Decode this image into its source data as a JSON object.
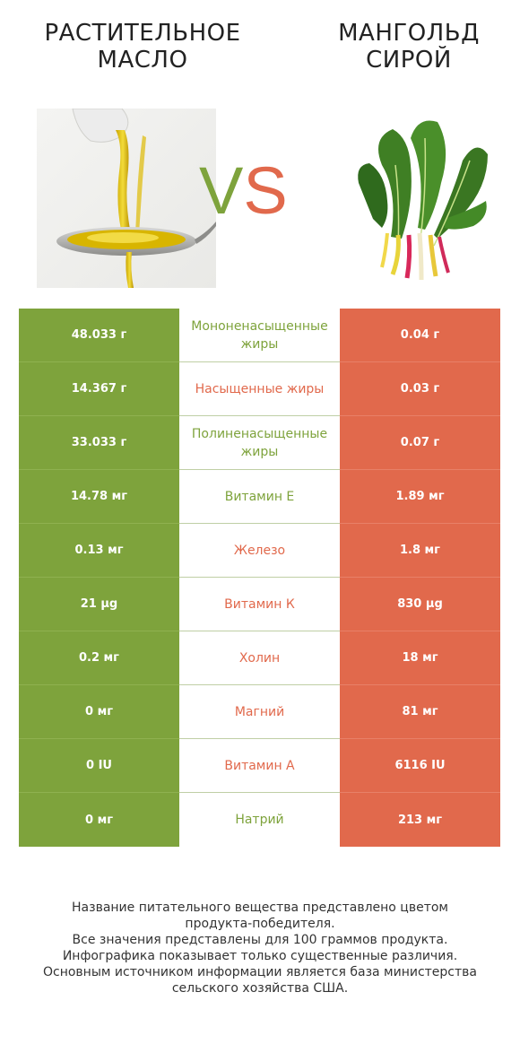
{
  "header": {
    "left_title_lines": [
      "РАСТИТЕЛЬНОЕ",
      "МАСЛО"
    ],
    "right_title_lines": [
      "МАНГОЛЬД",
      "СИРОЙ"
    ],
    "vs_v": "V",
    "vs_s": "S"
  },
  "colors": {
    "left": "#7ea33c",
    "right": "#e1694c"
  },
  "images": {
    "left": "oil-pouring-on-spoon-image",
    "right": "chard-leaves-image"
  },
  "rows": [
    {
      "left": "48.033 г",
      "label": "Мононенасыщенные жиры",
      "right": "0.04 г",
      "winner": "left"
    },
    {
      "left": "14.367 г",
      "label": "Насыщенные жиры",
      "right": "0.03 г",
      "winner": "right"
    },
    {
      "left": "33.033 г",
      "label": "Полиненасыщенные жиры",
      "right": "0.07 г",
      "winner": "left"
    },
    {
      "left": "14.78 мг",
      "label": "Витамин E",
      "right": "1.89 мг",
      "winner": "left"
    },
    {
      "left": "0.13 мг",
      "label": "Железо",
      "right": "1.8 мг",
      "winner": "right"
    },
    {
      "left": "21 µg",
      "label": "Витамин К",
      "right": "830 µg",
      "winner": "right"
    },
    {
      "left": "0.2 мг",
      "label": "Холин",
      "right": "18 мг",
      "winner": "right"
    },
    {
      "left": "0 мг",
      "label": "Магний",
      "right": "81 мг",
      "winner": "right"
    },
    {
      "left": "0 IU",
      "label": "Витамин A",
      "right": "6116 IU",
      "winner": "right"
    },
    {
      "left": "0 мг",
      "label": "Натрий",
      "right": "213 мг",
      "winner": "left"
    }
  ],
  "footer_lines": [
    "Название питательного вещества представлено цветом",
    "продукта-победителя.",
    "Все значения представлены для 100 граммов продукта.",
    "Инфографика показывает только существенные различия.",
    "Основным источником информации является база министерства",
    "сельского хозяйства США."
  ]
}
